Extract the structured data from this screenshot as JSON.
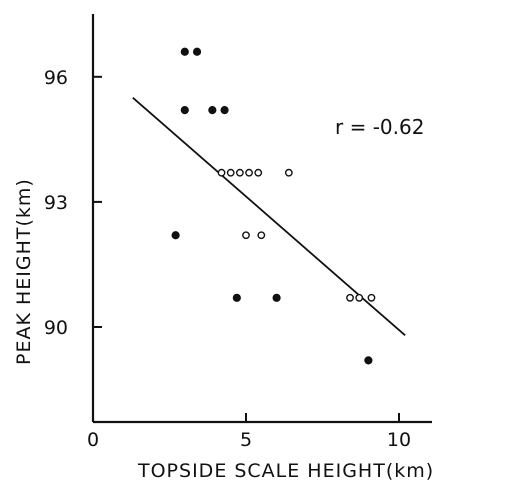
{
  "chart_data": {
    "type": "scatter",
    "title": "",
    "xlabel": "TOPSIDE SCALE HEIGHT(km)",
    "ylabel": "PEAK HEIGHT(km)",
    "xlim": [
      0,
      11
    ],
    "ylim": [
      87,
      98
    ],
    "x_ticks": [
      0,
      5,
      10
    ],
    "x_tick_labels": [
      "0",
      "5",
      "10"
    ],
    "y_ticks": [
      90,
      93,
      96
    ],
    "y_tick_labels": [
      "90",
      "93",
      "96"
    ],
    "grid": false,
    "annotation": "r = -0.62",
    "series": [
      {
        "marker": "filled",
        "points": [
          {
            "x": 3.0,
            "y": 96.6
          },
          {
            "x": 3.4,
            "y": 96.6
          },
          {
            "x": 3.0,
            "y": 95.2
          },
          {
            "x": 3.9,
            "y": 95.2
          },
          {
            "x": 4.3,
            "y": 95.2
          },
          {
            "x": 2.7,
            "y": 92.2
          },
          {
            "x": 4.7,
            "y": 90.7
          },
          {
            "x": 6.0,
            "y": 90.7
          },
          {
            "x": 9.0,
            "y": 89.2
          }
        ]
      },
      {
        "marker": "open",
        "points": [
          {
            "x": 4.2,
            "y": 93.7
          },
          {
            "x": 4.5,
            "y": 93.7
          },
          {
            "x": 4.8,
            "y": 93.7
          },
          {
            "x": 5.1,
            "y": 93.7
          },
          {
            "x": 5.4,
            "y": 93.7
          },
          {
            "x": 6.4,
            "y": 93.7
          },
          {
            "x": 5.0,
            "y": 92.2
          },
          {
            "x": 5.5,
            "y": 92.2
          },
          {
            "x": 8.4,
            "y": 90.7
          },
          {
            "x": 8.7,
            "y": 90.7
          },
          {
            "x": 9.1,
            "y": 90.7
          }
        ]
      }
    ],
    "regression_line": {
      "x": [
        1.3,
        10.2
      ],
      "y": [
        95.5,
        89.8
      ]
    }
  }
}
